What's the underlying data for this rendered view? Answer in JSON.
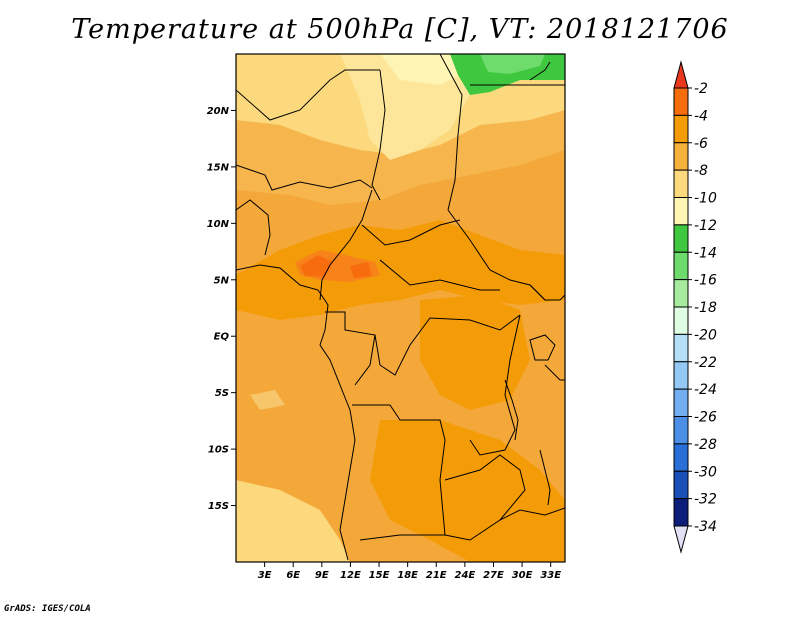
{
  "title": "Temperature at 500hPa [C], VT: 2018121706",
  "footer": "GrADS: IGES/COLA",
  "map": {
    "lat_labels": [
      "20N",
      "15N",
      "10N",
      "5N",
      "EQ",
      "5S",
      "10S",
      "15S"
    ],
    "lon_labels": [
      "3E",
      "6E",
      "9E",
      "12E",
      "15E",
      "18E",
      "21E",
      "24E",
      "27E",
      "30E",
      "33E"
    ]
  },
  "colorbar": {
    "labels": [
      "-2",
      "-4",
      "-6",
      "-8",
      "-10",
      "-12",
      "-14",
      "-16",
      "-18",
      "-20",
      "-22",
      "-24",
      "-26",
      "-28",
      "-30",
      "-32",
      "-34"
    ],
    "colors": [
      "#e8391f",
      "#f76d0d",
      "#f49c08",
      "#f7b23c",
      "#fbd97c",
      "#fef4b4",
      "#3fc740",
      "#6ddc6c",
      "#a6eb9e",
      "#dffde3",
      "#b4dff6",
      "#93c9f4",
      "#72aef0",
      "#4c8fe6",
      "#2a6fd8",
      "#1a4fb8",
      "#0c1e7a",
      "#e1e0f5"
    ]
  },
  "chart_data": {
    "type": "heatmap",
    "title": "Temperature at 500hPa [C], VT: 2018121706",
    "units": "C",
    "valid_time": "2018121706",
    "x_ticks": [
      "3E",
      "6E",
      "9E",
      "12E",
      "15E",
      "18E",
      "21E",
      "24E",
      "27E",
      "30E",
      "33E"
    ],
    "y_ticks": [
      "20N",
      "15N",
      "10N",
      "5N",
      "EQ",
      "5S",
      "10S",
      "15S"
    ],
    "xlim": [
      0,
      34.5
    ],
    "ylim": [
      -20,
      25
    ],
    "levels": [
      -34,
      -32,
      -30,
      -28,
      -26,
      -24,
      -22,
      -20,
      -18,
      -16,
      -14,
      -12,
      -10,
      -8,
      -6,
      -4,
      -2
    ]
  }
}
